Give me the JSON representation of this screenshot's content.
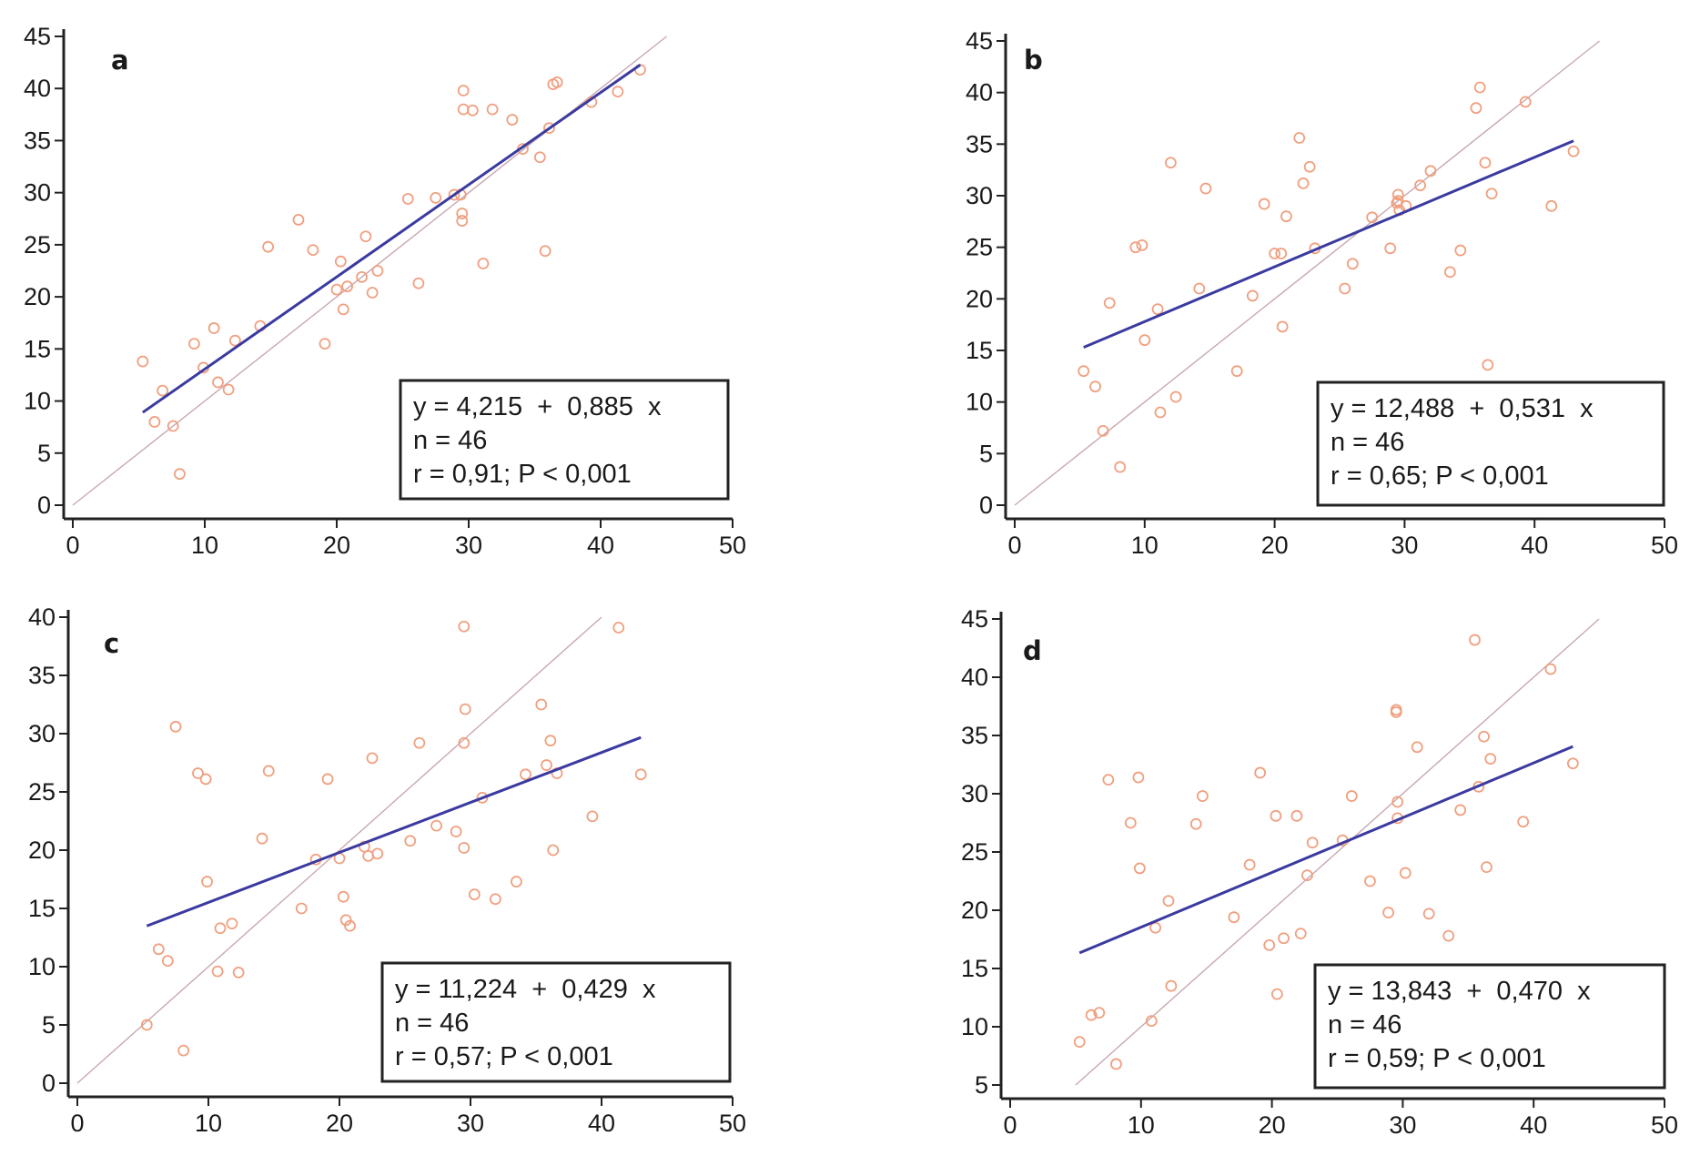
{
  "figure": {
    "colors": {
      "points": "#f0a080",
      "regression": "#3a3aa0",
      "identity": "#c8a8b0",
      "axis": "#222222",
      "box": "#222222"
    }
  },
  "chart_data": [
    {
      "type": "scatter",
      "panel": "a",
      "xlim": [
        0,
        50
      ],
      "ylim": [
        0,
        45
      ],
      "x_ticks": [
        "0",
        "10",
        "20",
        "30",
        "40",
        "50"
      ],
      "y_ticks": [
        "0",
        "5",
        "10",
        "15",
        "20",
        "25",
        "30",
        "35",
        "40",
        "45"
      ],
      "regression": {
        "intercept": 4.215,
        "slope": 0.885,
        "x_range": [
          5.3,
          43
        ]
      },
      "identity_line": [
        0,
        45
      ],
      "stats": [
        "y = 4,215  +  0,885  x",
        "n = 46",
        "r = 0,91; P < 0,001"
      ],
      "points": [
        [
          5.3,
          13.8
        ],
        [
          6.2,
          8.0
        ],
        [
          6.8,
          11.0
        ],
        [
          7.6,
          7.6
        ],
        [
          8.1,
          3.0
        ],
        [
          9.2,
          15.5
        ],
        [
          9.9,
          13.2
        ],
        [
          10.7,
          17.0
        ],
        [
          11.0,
          11.8
        ],
        [
          11.8,
          11.1
        ],
        [
          12.3,
          15.8
        ],
        [
          14.2,
          17.2
        ],
        [
          14.8,
          24.8
        ],
        [
          17.1,
          27.4
        ],
        [
          18.2,
          24.5
        ],
        [
          19.1,
          15.5
        ],
        [
          20.0,
          20.7
        ],
        [
          20.3,
          23.4
        ],
        [
          20.5,
          18.8
        ],
        [
          20.8,
          21.0
        ],
        [
          21.9,
          21.9
        ],
        [
          22.2,
          25.8
        ],
        [
          22.7,
          20.4
        ],
        [
          23.1,
          22.5
        ],
        [
          25.4,
          29.4
        ],
        [
          26.2,
          21.3
        ],
        [
          27.5,
          29.5
        ],
        [
          28.9,
          29.8
        ],
        [
          29.5,
          27.3
        ],
        [
          29.5,
          28.0
        ],
        [
          29.6,
          38.0
        ],
        [
          29.6,
          39.8
        ],
        [
          30.3,
          37.9
        ],
        [
          31.1,
          23.2
        ],
        [
          31.8,
          38.0
        ],
        [
          33.3,
          37.0
        ],
        [
          34.1,
          34.2
        ],
        [
          35.4,
          33.4
        ],
        [
          35.8,
          24.4
        ],
        [
          36.1,
          36.2
        ],
        [
          36.4,
          40.4
        ],
        [
          36.7,
          40.6
        ],
        [
          39.3,
          38.7
        ],
        [
          41.3,
          39.7
        ],
        [
          43.0,
          41.8
        ],
        [
          29.4,
          29.8
        ]
      ]
    },
    {
      "type": "scatter",
      "panel": "b",
      "xlim": [
        0,
        50
      ],
      "ylim": [
        0,
        45
      ],
      "x_ticks": [
        "0",
        "10",
        "20",
        "30",
        "40",
        "50"
      ],
      "y_ticks": [
        "0",
        "5",
        "10",
        "15",
        "20",
        "25",
        "30",
        "35",
        "40",
        "45"
      ],
      "regression": {
        "intercept": 12.488,
        "slope": 0.531,
        "x_range": [
          5.3,
          43
        ]
      },
      "identity_line": [
        0,
        45
      ],
      "stats": [
        "y = 12,488  +  0,531  x",
        "n = 46",
        "r = 0,65; P < 0,001"
      ],
      "points": [
        [
          5.3,
          13.0
        ],
        [
          6.2,
          11.5
        ],
        [
          6.8,
          7.2
        ],
        [
          7.3,
          19.6
        ],
        [
          8.1,
          3.7
        ],
        [
          9.3,
          25.0
        ],
        [
          9.8,
          25.2
        ],
        [
          10.0,
          16.0
        ],
        [
          11.0,
          19.0
        ],
        [
          11.2,
          9.0
        ],
        [
          12.0,
          33.2
        ],
        [
          12.4,
          10.5
        ],
        [
          14.2,
          21.0
        ],
        [
          14.7,
          30.7
        ],
        [
          17.1,
          13.0
        ],
        [
          18.3,
          20.3
        ],
        [
          19.2,
          29.2
        ],
        [
          20.0,
          24.4
        ],
        [
          20.5,
          24.4
        ],
        [
          20.6,
          17.3
        ],
        [
          20.9,
          28.0
        ],
        [
          21.9,
          35.6
        ],
        [
          22.2,
          31.2
        ],
        [
          22.7,
          32.8
        ],
        [
          23.1,
          24.9
        ],
        [
          25.4,
          21.0
        ],
        [
          26.0,
          23.4
        ],
        [
          27.5,
          27.9
        ],
        [
          28.9,
          24.9
        ],
        [
          29.5,
          29.5
        ],
        [
          29.5,
          30.1
        ],
        [
          29.6,
          28.6
        ],
        [
          30.1,
          29.0
        ],
        [
          31.2,
          31.0
        ],
        [
          32.0,
          32.4
        ],
        [
          33.5,
          22.6
        ],
        [
          34.3,
          24.7
        ],
        [
          35.5,
          38.5
        ],
        [
          35.8,
          40.5
        ],
        [
          36.2,
          33.2
        ],
        [
          36.4,
          13.6
        ],
        [
          36.7,
          30.2
        ],
        [
          39.3,
          39.1
        ],
        [
          41.3,
          29.0
        ],
        [
          43.0,
          34.3
        ],
        [
          29.4,
          29.3
        ]
      ]
    },
    {
      "type": "scatter",
      "panel": "c",
      "xlim": [
        0,
        50
      ],
      "ylim": [
        0,
        40
      ],
      "x_ticks": [
        "0",
        "10",
        "20",
        "30",
        "40",
        "50"
      ],
      "y_ticks": [
        "0",
        "5",
        "10",
        "15",
        "20",
        "25",
        "30",
        "35",
        "40"
      ],
      "regression": {
        "intercept": 11.224,
        "slope": 0.429,
        "x_range": [
          5.3,
          43
        ]
      },
      "identity_line": [
        0,
        40
      ],
      "stats": [
        "y = 11,224  +  0,429  x",
        "n = 46",
        "r = 0,57; P < 0,001"
      ],
      "points": [
        [
          5.3,
          5.0
        ],
        [
          6.2,
          11.5
        ],
        [
          6.9,
          10.5
        ],
        [
          7.5,
          30.6
        ],
        [
          8.1,
          2.8
        ],
        [
          9.2,
          26.6
        ],
        [
          9.8,
          26.1
        ],
        [
          9.9,
          17.3
        ],
        [
          10.7,
          9.6
        ],
        [
          10.9,
          13.3
        ],
        [
          11.8,
          13.7
        ],
        [
          12.3,
          9.5
        ],
        [
          14.1,
          21.0
        ],
        [
          14.6,
          26.8
        ],
        [
          17.1,
          15.0
        ],
        [
          18.2,
          19.2
        ],
        [
          19.1,
          26.1
        ],
        [
          20.0,
          19.3
        ],
        [
          20.3,
          16.0
        ],
        [
          20.5,
          14.0
        ],
        [
          20.8,
          13.5
        ],
        [
          21.9,
          20.3
        ],
        [
          22.2,
          19.5
        ],
        [
          22.5,
          27.9
        ],
        [
          22.9,
          19.7
        ],
        [
          25.4,
          20.8
        ],
        [
          26.1,
          29.2
        ],
        [
          27.4,
          22.1
        ],
        [
          28.9,
          21.6
        ],
        [
          29.5,
          20.2
        ],
        [
          29.5,
          29.2
        ],
        [
          29.6,
          32.1
        ],
        [
          29.5,
          39.2
        ],
        [
          30.3,
          16.2
        ],
        [
          30.9,
          24.5
        ],
        [
          31.9,
          15.8
        ],
        [
          33.5,
          17.3
        ],
        [
          34.2,
          26.5
        ],
        [
          35.4,
          32.5
        ],
        [
          35.8,
          27.3
        ],
        [
          36.1,
          29.4
        ],
        [
          36.3,
          20.0
        ],
        [
          36.6,
          26.6
        ],
        [
          39.3,
          22.9
        ],
        [
          41.3,
          39.1
        ],
        [
          43.0,
          26.5
        ]
      ]
    },
    {
      "type": "scatter",
      "panel": "d",
      "xlim": [
        0,
        50
      ],
      "ylim": [
        5,
        45
      ],
      "x_ticks": [
        "0",
        "10",
        "20",
        "30",
        "40",
        "50"
      ],
      "y_ticks": [
        "5",
        "10",
        "15",
        "20",
        "25",
        "30",
        "35",
        "40",
        "45"
      ],
      "regression": {
        "intercept": 13.843,
        "slope": 0.47,
        "x_range": [
          5.3,
          43
        ]
      },
      "identity_line": [
        5,
        45
      ],
      "stats": [
        "y = 13,843  +  0,470  x",
        "n = 46",
        "r = 0,59; P < 0,001"
      ],
      "points": [
        [
          5.3,
          8.7
        ],
        [
          6.2,
          11.0
        ],
        [
          6.8,
          11.2
        ],
        [
          7.5,
          31.2
        ],
        [
          8.1,
          6.8
        ],
        [
          9.2,
          27.5
        ],
        [
          9.8,
          31.4
        ],
        [
          9.9,
          23.6
        ],
        [
          10.8,
          10.5
        ],
        [
          11.1,
          18.5
        ],
        [
          12.1,
          20.8
        ],
        [
          12.3,
          13.5
        ],
        [
          14.2,
          27.4
        ],
        [
          14.7,
          29.8
        ],
        [
          17.1,
          19.4
        ],
        [
          18.3,
          23.9
        ],
        [
          19.1,
          31.8
        ],
        [
          19.8,
          17.0
        ],
        [
          20.3,
          28.1
        ],
        [
          20.4,
          12.8
        ],
        [
          20.9,
          17.6
        ],
        [
          21.9,
          28.1
        ],
        [
          22.2,
          18.0
        ],
        [
          22.7,
          23.0
        ],
        [
          23.1,
          25.8
        ],
        [
          25.4,
          26.0
        ],
        [
          26.1,
          29.8
        ],
        [
          27.5,
          22.5
        ],
        [
          28.9,
          19.8
        ],
        [
          29.5,
          37.0
        ],
        [
          29.5,
          37.2
        ],
        [
          29.6,
          29.3
        ],
        [
          29.6,
          27.9
        ],
        [
          30.2,
          23.2
        ],
        [
          31.1,
          34.0
        ],
        [
          32.0,
          19.7
        ],
        [
          33.5,
          17.8
        ],
        [
          34.4,
          28.6
        ],
        [
          35.5,
          43.2
        ],
        [
          35.8,
          30.6
        ],
        [
          36.2,
          34.9
        ],
        [
          36.4,
          23.7
        ],
        [
          36.7,
          33.0
        ],
        [
          39.2,
          27.6
        ],
        [
          41.3,
          40.7
        ],
        [
          43.0,
          32.6
        ]
      ]
    }
  ]
}
